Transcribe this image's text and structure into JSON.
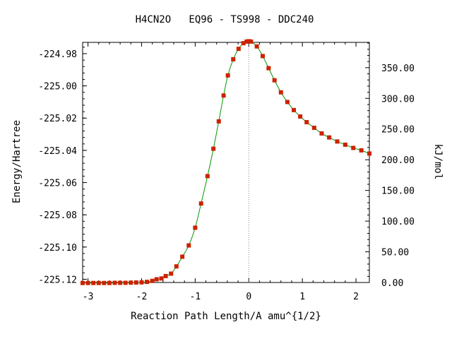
{
  "chart_data": {
    "type": "line",
    "title": "H4CN2O   EQ96 - TS998 - DDC240",
    "xlabel": "Reaction Path Length/A amu^{1/2}",
    "ylabel_left": "Energy/Hartree",
    "ylabel_right": "kJ/mol",
    "xlim": [
      -3.1,
      2.25
    ],
    "ylim": [
      -225.122,
      -224.973
    ],
    "y2lim": [
      0.0,
      391.2
    ],
    "x_ticks": [
      -3,
      -2,
      -1,
      0,
      1,
      2
    ],
    "x_tick_labels": [
      "-3",
      "-2",
      "-1",
      "0",
      "1",
      "2"
    ],
    "y_ticks": [
      -224.98,
      -225.0,
      -225.02,
      -225.04,
      -225.06,
      -225.08,
      -225.1,
      -225.12
    ],
    "y_tick_labels": [
      "-224.98",
      "-225.00",
      "-225.02",
      "-225.04",
      "-225.06",
      "-225.08",
      "-225.10",
      "-225.12"
    ],
    "y2_ticks": [
      350,
      300,
      250,
      200,
      150,
      100,
      50,
      0
    ],
    "y2_tick_labels": [
      "350.00",
      "300.00",
      "250.00",
      "200.00",
      "150.00",
      "100.00",
      "50.00",
      "0.00"
    ],
    "ts_marker_x": 0,
    "grid": false,
    "colors": {
      "line": "#009900",
      "points": "#cc2200",
      "ts_line": "#888888"
    },
    "series": [
      {
        "x": [
          -3.1,
          -3.0,
          -2.9,
          -2.8,
          -2.7,
          -2.6,
          -2.5,
          -2.4,
          -2.3,
          -2.2,
          -2.1,
          -2.0,
          -1.9,
          -1.8,
          -1.72,
          -1.63,
          -1.55,
          -1.45,
          -1.35,
          -1.24,
          -1.12,
          -1.0,
          -0.89,
          -0.77,
          -0.66,
          -0.56,
          -0.47,
          -0.39,
          -0.29,
          -0.19,
          -0.1,
          -0.04,
          0.0,
          0.04,
          0.15,
          0.26,
          0.37,
          0.48,
          0.6,
          0.72,
          0.84,
          0.96,
          1.08,
          1.22,
          1.36,
          1.5,
          1.65,
          1.8,
          1.95,
          2.1,
          2.25
        ],
        "y": [
          -225.1223,
          -225.1223,
          -225.1223,
          -225.1223,
          -225.1223,
          -225.1223,
          -225.1222,
          -225.1222,
          -225.1222,
          -225.1221,
          -225.122,
          -225.1219,
          -225.1216,
          -225.121,
          -225.12,
          -225.1195,
          -225.118,
          -225.1165,
          -225.112,
          -225.106,
          -225.099,
          -225.088,
          -225.073,
          -225.056,
          -225.039,
          -225.022,
          -225.006,
          -224.9935,
          -224.9835,
          -224.977,
          -224.9735,
          -224.9725,
          -224.9723,
          -224.9725,
          -224.9755,
          -224.9815,
          -224.989,
          -224.9965,
          -225.004,
          -225.01,
          -225.015,
          -225.019,
          -225.0225,
          -225.026,
          -225.0295,
          -225.032,
          -225.0345,
          -225.0365,
          -225.0385,
          -225.04,
          -225.042
        ]
      }
    ]
  }
}
